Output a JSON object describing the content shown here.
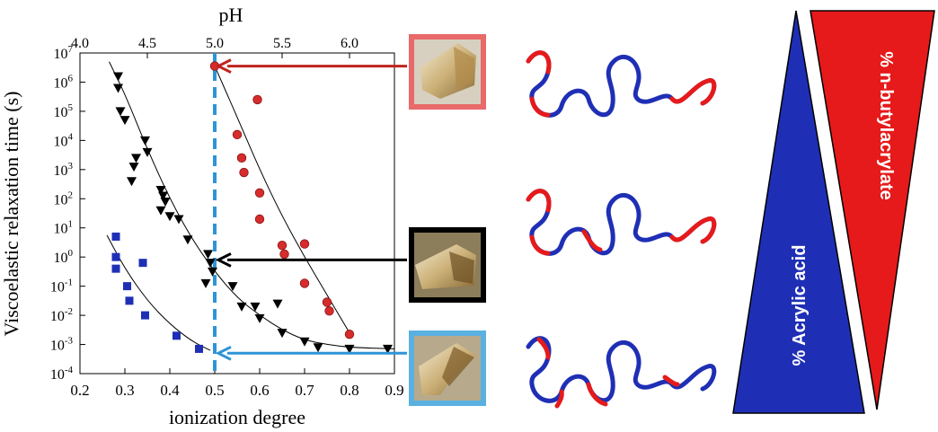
{
  "chart_data": {
    "type": "scatter",
    "xlabel": "ionization degree",
    "ylabel": "Viscoelastic relaxation time (s)",
    "x2label": "pH",
    "xlim": [
      0.2,
      0.9
    ],
    "ylim_log10": [
      -4,
      7
    ],
    "y_scale": "log",
    "x_ticks": [
      "0.2",
      "0.3",
      "0.4",
      "0.5",
      "0.6",
      "0.7",
      "0.8",
      "0.9"
    ],
    "x2_ticks": [
      {
        "label": "4.0",
        "at": 0.2
      },
      {
        "label": "4.5",
        "at": 0.35
      },
      {
        "label": "5.0",
        "at": 0.5
      },
      {
        "label": "5.5",
        "at": 0.65
      },
      {
        "label": "6.0",
        "at": 0.8
      }
    ],
    "y_ticks": [
      {
        "base": "10",
        "exp": "-4",
        "value": -4
      },
      {
        "base": "10",
        "exp": "-3",
        "value": -3
      },
      {
        "base": "10",
        "exp": "-2",
        "value": -2
      },
      {
        "base": "10",
        "exp": "-1",
        "value": -1
      },
      {
        "base": "10",
        "exp": "0",
        "value": 0
      },
      {
        "base": "10",
        "exp": "1",
        "value": 1
      },
      {
        "base": "10",
        "exp": "2",
        "value": 2
      },
      {
        "base": "10",
        "exp": "3",
        "value": 3
      },
      {
        "base": "10",
        "exp": "4",
        "value": 4
      },
      {
        "base": "10",
        "exp": "5",
        "value": 5
      },
      {
        "base": "10",
        "exp": "6",
        "value": 6
      },
      {
        "base": "10",
        "exp": "7",
        "value": 7
      }
    ],
    "grid": false,
    "series": [
      {
        "marker": "square",
        "color": "#1f2fb5",
        "points": [
          [
            0.28,
            0.7
          ],
          [
            0.28,
            0.0
          ],
          [
            0.28,
            -0.4
          ],
          [
            0.34,
            -0.2
          ],
          [
            0.305,
            -1.0
          ],
          [
            0.31,
            -1.5
          ],
          [
            0.345,
            -2.0
          ],
          [
            0.415,
            -2.7
          ],
          [
            0.465,
            -3.15
          ]
        ],
        "fit": [
          [
            0.26,
            0.75
          ],
          [
            0.3,
            -0.4
          ],
          [
            0.35,
            -1.5
          ],
          [
            0.4,
            -2.3
          ],
          [
            0.45,
            -2.9
          ],
          [
            0.49,
            -3.2
          ]
        ]
      },
      {
        "marker": "triangle-down",
        "color": "#000000",
        "points": [
          [
            0.285,
            6.2
          ],
          [
            0.285,
            5.8
          ],
          [
            0.29,
            5.0
          ],
          [
            0.3,
            4.7
          ],
          [
            0.325,
            3.4
          ],
          [
            0.32,
            3.1
          ],
          [
            0.315,
            2.6
          ],
          [
            0.345,
            4.0
          ],
          [
            0.35,
            3.6
          ],
          [
            0.38,
            2.3
          ],
          [
            0.385,
            2.1
          ],
          [
            0.39,
            1.9
          ],
          [
            0.38,
            1.6
          ],
          [
            0.4,
            1.4
          ],
          [
            0.42,
            1.3
          ],
          [
            0.44,
            0.6
          ],
          [
            0.485,
            0.1
          ],
          [
            0.49,
            -0.2
          ],
          [
            0.495,
            -0.5
          ],
          [
            0.48,
            -0.9
          ],
          [
            0.54,
            -1.0
          ],
          [
            0.56,
            -1.7
          ],
          [
            0.59,
            -1.7
          ],
          [
            0.6,
            -2.1
          ],
          [
            0.64,
            -1.6
          ],
          [
            0.65,
            -2.6
          ],
          [
            0.7,
            -2.9
          ],
          [
            0.73,
            -3.1
          ],
          [
            0.8,
            -3.15
          ],
          [
            0.885,
            -3.15
          ]
        ],
        "fit": [
          [
            0.265,
            6.7
          ],
          [
            0.3,
            5.6
          ],
          [
            0.35,
            3.7
          ],
          [
            0.4,
            2.0
          ],
          [
            0.45,
            0.6
          ],
          [
            0.5,
            -0.5
          ],
          [
            0.55,
            -1.4
          ],
          [
            0.6,
            -2.0
          ],
          [
            0.65,
            -2.5
          ],
          [
            0.7,
            -2.85
          ],
          [
            0.75,
            -3.0
          ],
          [
            0.8,
            -3.1
          ],
          [
            0.9,
            -3.15
          ]
        ]
      },
      {
        "marker": "circle",
        "color": "#d62c2c",
        "points": [
          [
            0.5,
            6.55
          ],
          [
            0.595,
            5.4
          ],
          [
            0.55,
            4.2
          ],
          [
            0.56,
            3.4
          ],
          [
            0.565,
            2.9
          ],
          [
            0.6,
            2.2
          ],
          [
            0.6,
            1.3
          ],
          [
            0.65,
            0.4
          ],
          [
            0.655,
            0.1
          ],
          [
            0.7,
            0.45
          ],
          [
            0.7,
            -0.9
          ],
          [
            0.75,
            -1.55
          ],
          [
            0.755,
            -1.85
          ],
          [
            0.8,
            -2.65
          ]
        ],
        "fit": [
          [
            0.5,
            6.55
          ],
          [
            0.55,
            4.8
          ],
          [
            0.6,
            3.0
          ],
          [
            0.65,
            1.4
          ],
          [
            0.7,
            0.0
          ],
          [
            0.75,
            -1.3
          ],
          [
            0.8,
            -2.6
          ]
        ]
      }
    ],
    "reference_line": {
      "x": 0.5,
      "style": "dashed",
      "color": "#2e94d6"
    },
    "arrows": [
      {
        "color": "#c0241f",
        "target_value": 6.55,
        "inset_frame": "#e86a6a"
      },
      {
        "color": "#000000",
        "target_value": -0.1,
        "inset_frame": "#000000"
      },
      {
        "color": "#2e94d6",
        "target_value": -3.3,
        "inset_frame": "#5ab0e0"
      }
    ]
  },
  "triangles": {
    "left_label": "% Acrylic acid",
    "left_color": "#1f2fb5",
    "right_label": "% n-butylacrylate",
    "right_color": "#e61a1a"
  }
}
